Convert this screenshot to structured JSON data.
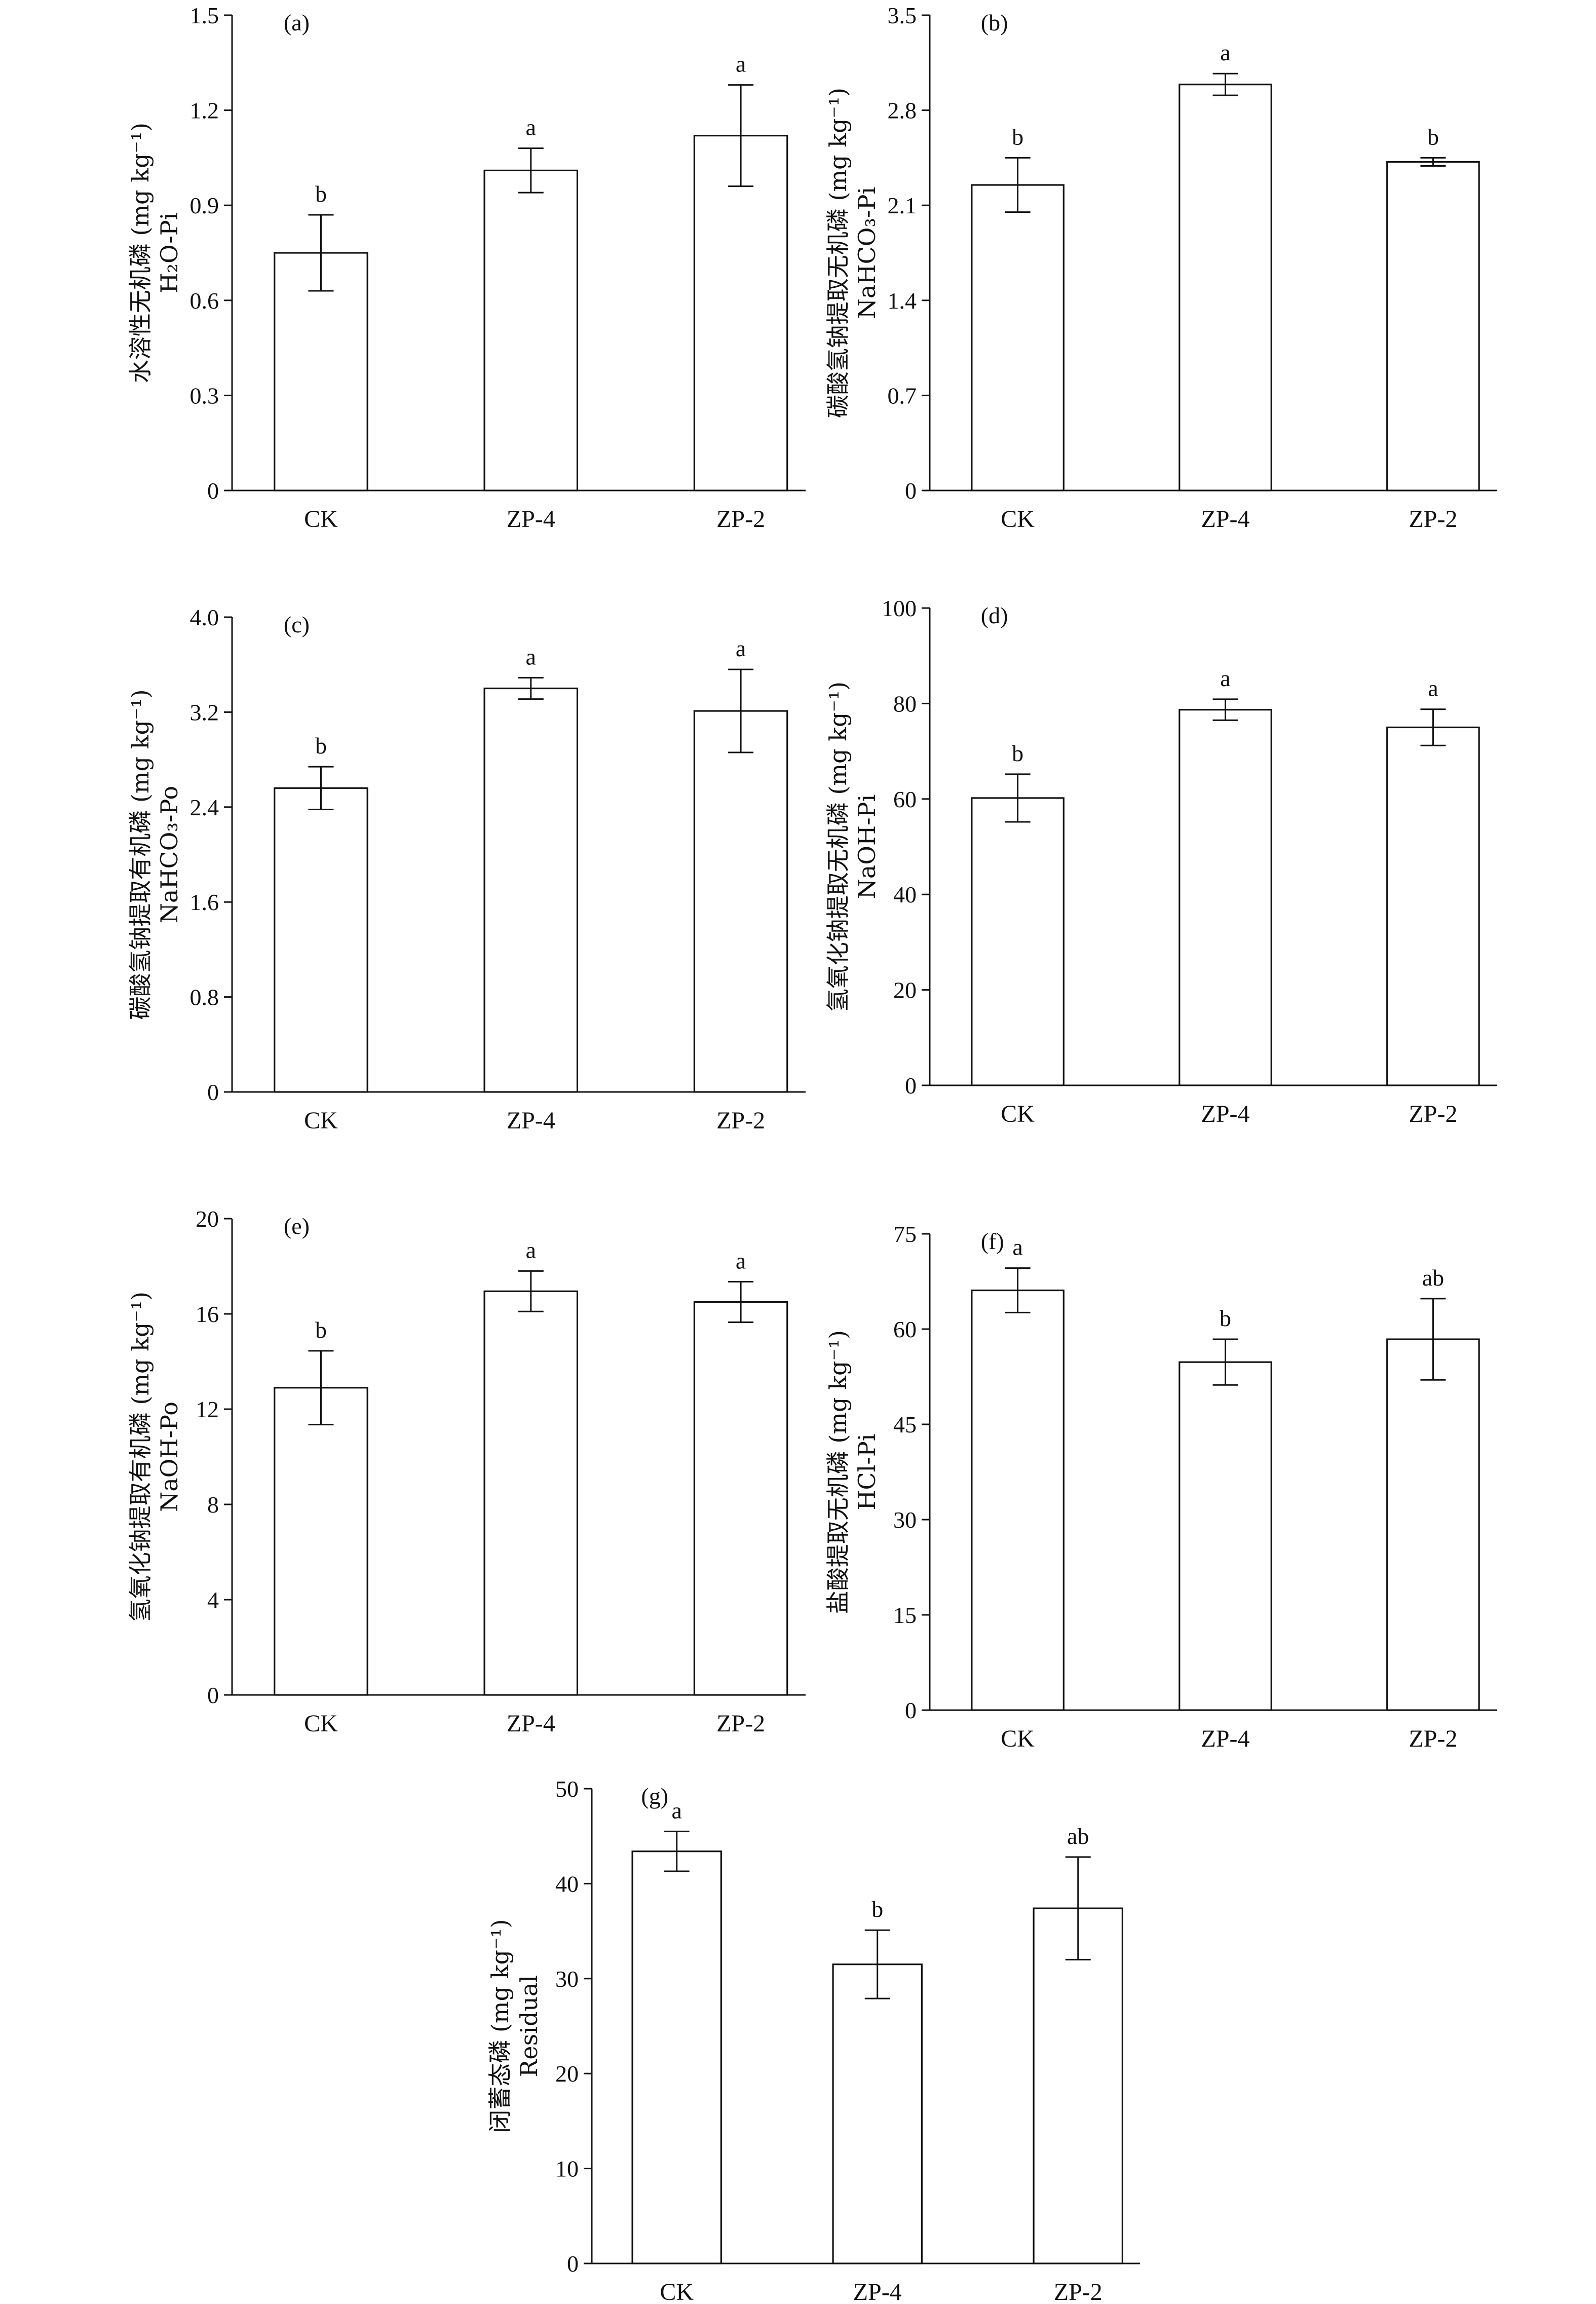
{
  "chart_data": [
    {
      "type": "bar",
      "panel": "(a)",
      "ylabel_cn": "水溶性无机磷 (mg kg⁻¹)",
      "ylabel_en": "H₂O-Pi",
      "categories": [
        "CK",
        "ZP-4",
        "ZP-2"
      ],
      "values": [
        0.75,
        1.01,
        1.12
      ],
      "errors": [
        0.12,
        0.07,
        0.16
      ],
      "sig": [
        "b",
        "a",
        "a"
      ],
      "ylim": [
        0,
        1.5
      ],
      "yticks": [
        0,
        0.3,
        0.6,
        0.9,
        1.2,
        1.5
      ],
      "ytick_labels": [
        "0",
        "0.3",
        "0.6",
        "0.9",
        "1.2",
        "1.5"
      ]
    },
    {
      "type": "bar",
      "panel": "(b)",
      "ylabel_cn": "碳酸氢钠提取无机磷 (mg kg⁻¹)",
      "ylabel_en": "NaHCO₃-Pi",
      "categories": [
        "CK",
        "ZP-4",
        "ZP-2"
      ],
      "values": [
        2.25,
        2.99,
        2.42
      ],
      "errors": [
        0.2,
        0.08,
        0.03
      ],
      "sig": [
        "b",
        "a",
        "b"
      ],
      "ylim": [
        0,
        3.5
      ],
      "yticks": [
        0,
        0.7,
        1.4,
        2.1,
        2.8,
        3.5
      ],
      "ytick_labels": [
        "0",
        "0.7",
        "1.4",
        "2.1",
        "2.8",
        "3.5"
      ]
    },
    {
      "type": "bar",
      "panel": "(c)",
      "ylabel_cn": "碳酸氢钠提取有机磷 (mg kg⁻¹)",
      "ylabel_en": "NaHCO₃-Po",
      "categories": [
        "CK",
        "ZP-4",
        "ZP-2"
      ],
      "values": [
        2.56,
        3.4,
        3.21
      ],
      "errors": [
        0.18,
        0.09,
        0.35
      ],
      "sig": [
        "b",
        "a",
        "a"
      ],
      "ylim": [
        0,
        4.0
      ],
      "yticks": [
        0,
        0.8,
        1.6,
        2.4,
        3.2,
        4.0
      ],
      "ytick_labels": [
        "0",
        "0.8",
        "1.6",
        "2.4",
        "3.2",
        "4.0"
      ]
    },
    {
      "type": "bar",
      "panel": "(d)",
      "ylabel_cn": "氢氧化钠提取无机磷 (mg kg⁻¹)",
      "ylabel_en": "NaOH-Pi",
      "categories": [
        "CK",
        "ZP-4",
        "ZP-2"
      ],
      "values": [
        60.2,
        78.7,
        75.0
      ],
      "errors": [
        5.0,
        2.2,
        3.8
      ],
      "sig": [
        "b",
        "a",
        "a"
      ],
      "ylim": [
        0,
        100
      ],
      "yticks": [
        0,
        20,
        40,
        60,
        80,
        100
      ],
      "ytick_labels": [
        "0",
        "20",
        "40",
        "60",
        "80",
        "100"
      ]
    },
    {
      "type": "bar",
      "panel": "(e)",
      "ylabel_cn": "氢氧化钠提取有机磷 (mg kg⁻¹)",
      "ylabel_en": "NaOH-Po",
      "categories": [
        "CK",
        "ZP-4",
        "ZP-2"
      ],
      "values": [
        12.9,
        16.95,
        16.5
      ],
      "errors": [
        1.55,
        0.85,
        0.85
      ],
      "sig": [
        "b",
        "a",
        "a"
      ],
      "ylim": [
        0,
        20
      ],
      "yticks": [
        0,
        4,
        8,
        12,
        16,
        20
      ],
      "ytick_labels": [
        "0",
        "4",
        "8",
        "12",
        "16",
        "20"
      ]
    },
    {
      "type": "bar",
      "panel": "(f)",
      "ylabel_cn": "盐酸提取无机磷 (mg kg⁻¹)",
      "ylabel_en": "HCl-Pi",
      "categories": [
        "CK",
        "ZP-4",
        "ZP-2"
      ],
      "values": [
        66.1,
        54.8,
        58.4
      ],
      "errors": [
        3.5,
        3.6,
        6.4
      ],
      "sig": [
        "a",
        "b",
        "ab"
      ],
      "ylim": [
        0,
        75
      ],
      "yticks": [
        0,
        15,
        30,
        45,
        60,
        75
      ],
      "ytick_labels": [
        "0",
        "15",
        "30",
        "45",
        "60",
        "75"
      ]
    },
    {
      "type": "bar",
      "panel": "(g)",
      "ylabel_cn": "闭蓄态磷 (mg kg⁻¹)",
      "ylabel_en": "Residual",
      "categories": [
        "CK",
        "ZP-4",
        "ZP-2"
      ],
      "values": [
        43.4,
        31.5,
        37.4
      ],
      "errors": [
        2.1,
        3.6,
        5.4
      ],
      "sig": [
        "a",
        "b",
        "ab"
      ],
      "ylim": [
        0,
        50
      ],
      "yticks": [
        0,
        10,
        20,
        30,
        40,
        50
      ],
      "ytick_labels": [
        "0",
        "10",
        "20",
        "30",
        "40",
        "50"
      ]
    }
  ]
}
